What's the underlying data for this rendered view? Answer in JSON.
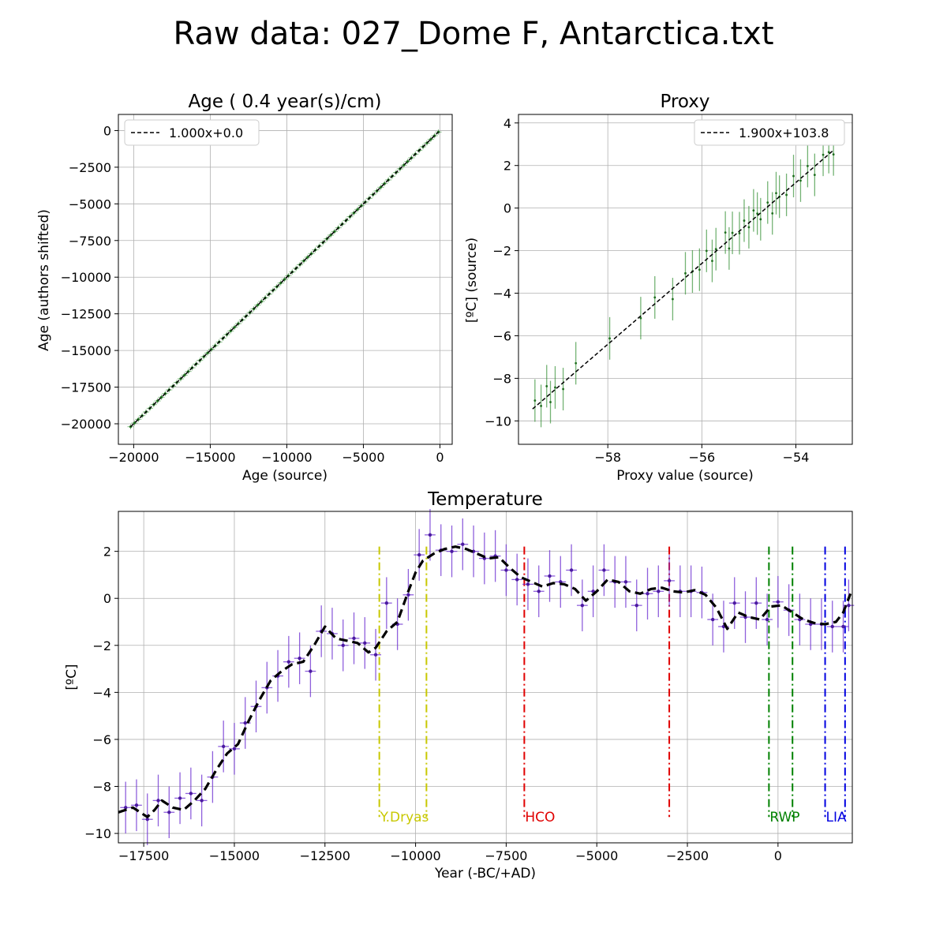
{
  "figure": {
    "title": "Raw data: 027_Dome F, Antarctica.txt"
  },
  "colors": {
    "scatter": "#2a8a2a",
    "fit": "#000000",
    "temp": "#6a2bd0",
    "ydryas": "#c8c800",
    "hco": "#e00000",
    "rwp": "#008000",
    "lia": "#0000e0"
  },
  "chart_data": [
    {
      "type": "scatter",
      "title": "Age ( 0.4 year(s)/cm)",
      "xlabel": "Age (source)",
      "ylabel": "Age (authors shifted)",
      "xlim": [
        -21000,
        800
      ],
      "ylim": [
        -21400,
        1100
      ],
      "xticks": [
        -20000,
        -15000,
        -10000,
        -5000,
        0
      ],
      "xtick_labels": [
        "−20000",
        "−15000",
        "−10000",
        "−5000",
        "0"
      ],
      "yticks": [
        0,
        -2500,
        -5000,
        -7500,
        -10000,
        -12500,
        -15000,
        -17500,
        -20000
      ],
      "ytick_labels": [
        "0",
        "−2500",
        "−5000",
        "−7500",
        "−10000",
        "−12500",
        "−15000",
        "−17500",
        "−20000"
      ],
      "grid": true,
      "legend": {
        "position": "top-left",
        "entries": [
          "1.000x+0.0"
        ]
      },
      "fit": {
        "slope": 1.0,
        "intercept": 0.0,
        "x_range": [
          -20200,
          -100
        ]
      },
      "points": {
        "x_start": -20200,
        "x_end": -100,
        "count": 81,
        "y_err": 180
      }
    },
    {
      "type": "scatter",
      "title": "Proxy",
      "xlabel": "Proxy value (source)",
      "ylabel": "[ºC] (source)",
      "xlim": [
        -59.9,
        -52.8
      ],
      "ylim": [
        -11.1,
        4.4
      ],
      "xticks": [
        -58,
        -56,
        -54
      ],
      "xtick_labels": [
        "−58",
        "−56",
        "−54"
      ],
      "yticks": [
        4,
        2,
        0,
        -2,
        -4,
        -6,
        -8,
        -10
      ],
      "ytick_labels": [
        "4",
        "2",
        "0",
        "−2",
        "−4",
        "−6",
        "−8",
        "−10"
      ],
      "grid": true,
      "legend": {
        "position": "top-right",
        "entries": [
          "1.900x+103.8"
        ]
      },
      "fit": {
        "slope": 1.9,
        "intercept": 103.8,
        "x_range": [
          -59.6,
          -53.2
        ]
      },
      "x": [
        -59.55,
        -59.42,
        -59.3,
        -59.22,
        -59.12,
        -58.95,
        -58.68,
        -57.96,
        -57.3,
        -57.0,
        -56.62,
        -56.35,
        -56.2,
        -56.05,
        -55.9,
        -55.78,
        -55.7,
        -55.5,
        -55.42,
        -55.35,
        -55.2,
        -55.1,
        -55.0,
        -54.9,
        -54.82,
        -54.75,
        -54.6,
        -54.5,
        -54.42,
        -54.35,
        -54.2,
        -54.05,
        -53.9,
        -53.75,
        -53.6,
        -53.42,
        -53.3,
        -53.2
      ],
      "y_err": 1.0
    },
    {
      "type": "line",
      "title": "Temperature",
      "xlabel": "Year (-BC/+AD)",
      "ylabel": "[ºC]",
      "xlim": [
        -18200,
        2050
      ],
      "ylim": [
        -10.4,
        3.7
      ],
      "xticks": [
        -17500,
        -15000,
        -12500,
        -10000,
        -7500,
        -5000,
        -2500,
        0
      ],
      "xtick_labels": [
        "−17500",
        "−15000",
        "−12500",
        "−10000",
        "−7500",
        "−5000",
        "−2500",
        "0"
      ],
      "yticks": [
        2,
        0,
        -2,
        -4,
        -6,
        -8,
        -10
      ],
      "ytick_labels": [
        "2",
        "0",
        "−2",
        "−4",
        "−6",
        "−8",
        "−10"
      ],
      "grid": true,
      "x": [
        -18000,
        -17700,
        -17400,
        -17100,
        -16800,
        -16500,
        -16200,
        -15900,
        -15600,
        -15300,
        -15000,
        -14700,
        -14400,
        -14100,
        -13800,
        -13500,
        -13200,
        -12900,
        -12600,
        -12300,
        -12000,
        -11700,
        -11400,
        -11100,
        -10800,
        -10500,
        -10200,
        -9900,
        -9600,
        -9300,
        -9000,
        -8700,
        -8400,
        -8100,
        -7800,
        -7500,
        -7200,
        -6900,
        -6600,
        -6300,
        -6000,
        -5700,
        -5400,
        -5100,
        -4800,
        -4500,
        -4200,
        -3900,
        -3600,
        -3300,
        -3000,
        -2700,
        -2400,
        -2100,
        -1800,
        -1500,
        -1200,
        -900,
        -600,
        -300,
        0,
        300,
        600,
        900,
        1200,
        1500,
        1800,
        1950
      ],
      "y": [
        -8.9,
        -8.8,
        -9.4,
        -8.6,
        -9.1,
        -8.5,
        -8.3,
        -8.6,
        -7.6,
        -6.3,
        -6.4,
        -5.3,
        -4.6,
        -3.8,
        -3.3,
        -2.7,
        -2.55,
        -3.1,
        -1.4,
        -1.5,
        -2.0,
        -1.7,
        -1.9,
        -2.4,
        -0.2,
        -1.1,
        0.15,
        1.85,
        2.7,
        2.05,
        2.0,
        2.3,
        2.0,
        1.7,
        1.8,
        1.2,
        0.8,
        0.6,
        0.3,
        0.95,
        0.7,
        1.2,
        -0.3,
        0.3,
        1.2,
        0.7,
        0.7,
        -0.3,
        0.2,
        0.3,
        0.75,
        0.3,
        0.3,
        0.25,
        -0.9,
        -1.2,
        -0.2,
        -0.8,
        -0.2,
        -0.9,
        -0.15,
        -0.5,
        -0.9,
        -1.1,
        -1.1,
        -1.2,
        -1.2,
        -0.3
      ],
      "y_err": 1.1,
      "x_err": 150,
      "smooth": {
        "x": [
          -18200,
          -17800,
          -17400,
          -17200,
          -17000,
          -16700,
          -16400,
          -16100,
          -15800,
          -15500,
          -15200,
          -14900,
          -14600,
          -14300,
          -14000,
          -13700,
          -13400,
          -13100,
          -12800,
          -12500,
          -12200,
          -11900,
          -11600,
          -11300,
          -11100,
          -10800,
          -10500,
          -10200,
          -10000,
          -9800,
          -9500,
          -9200,
          -8900,
          -8600,
          -8300,
          -8000,
          -7700,
          -7400,
          -7100,
          -6800,
          -6500,
          -6200,
          -5900,
          -5600,
          -5300,
          -5000,
          -4700,
          -4400,
          -4100,
          -3800,
          -3500,
          -3200,
          -2900,
          -2600,
          -2300,
          -2000,
          -1700,
          -1400,
          -1100,
          -800,
          -500,
          -200,
          100,
          400,
          700,
          1000,
          1300,
          1600,
          1800,
          2000
        ],
        "y": [
          -9.1,
          -8.9,
          -9.3,
          -9.0,
          -8.6,
          -8.9,
          -9.0,
          -8.6,
          -8.1,
          -7.3,
          -6.6,
          -6.2,
          -5.2,
          -4.3,
          -3.5,
          -3.1,
          -2.8,
          -2.7,
          -2.0,
          -1.2,
          -1.7,
          -1.8,
          -1.9,
          -2.3,
          -2.1,
          -1.4,
          -1.0,
          0.3,
          1.1,
          1.6,
          1.9,
          2.1,
          2.2,
          2.1,
          1.9,
          1.7,
          1.75,
          1.3,
          0.9,
          0.7,
          0.5,
          0.65,
          0.6,
          0.4,
          -0.1,
          0.3,
          0.8,
          0.7,
          0.3,
          0.2,
          0.4,
          0.45,
          0.3,
          0.25,
          0.35,
          0.15,
          -0.4,
          -1.3,
          -0.6,
          -0.8,
          -0.9,
          -0.35,
          -0.3,
          -0.6,
          -0.9,
          -1.05,
          -1.1,
          -1.0,
          -0.6,
          0.2
        ]
      },
      "events": [
        {
          "label": "Y.Dryas",
          "x": [
            -11000,
            -9700
          ],
          "color": "#c8c800"
        },
        {
          "label": "HCO",
          "x": [
            -7000,
            -3000
          ],
          "color": "#e00000"
        },
        {
          "label": "RWP",
          "x": [
            -250,
            400
          ],
          "color": "#008000"
        },
        {
          "label": "LIA",
          "x": [
            1300,
            1850
          ],
          "color": "#0000e0"
        }
      ]
    }
  ]
}
